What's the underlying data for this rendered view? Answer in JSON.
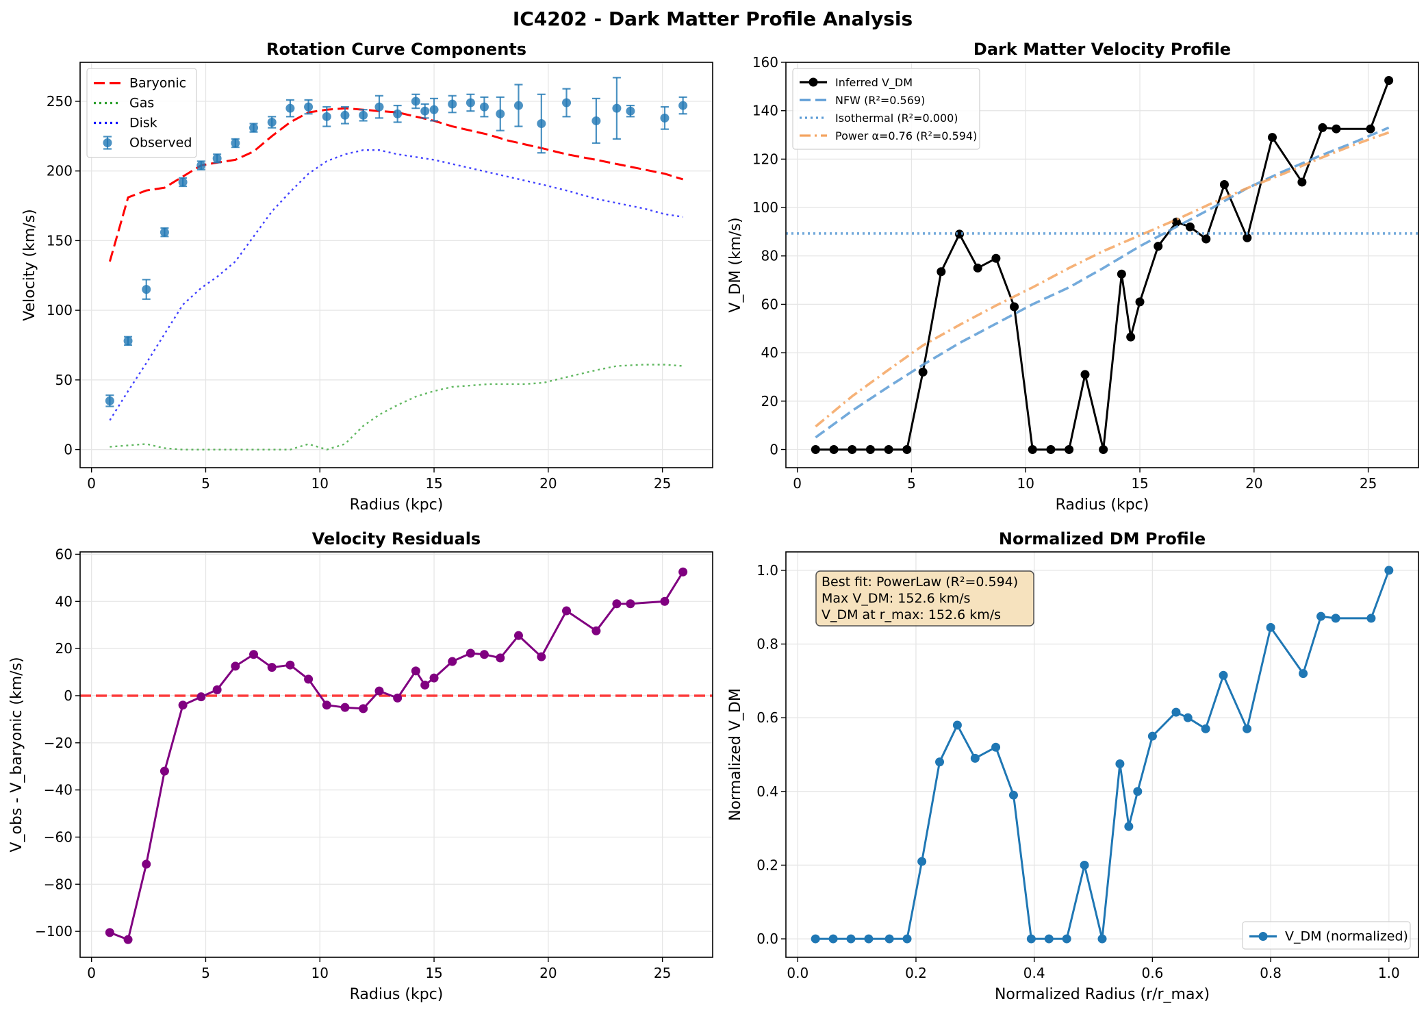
{
  "suptitle": "IC4202 - Dark Matter Profile Analysis",
  "chart_data": [
    {
      "type": "line",
      "title": "Rotation Curve Components",
      "xlabel": "Radius (kpc)",
      "ylabel": "Velocity (km/s)",
      "xlim": [
        -0.5,
        27.2
      ],
      "ylim": [
        -13,
        278
      ],
      "xticks": [
        0,
        5,
        10,
        15,
        20,
        25
      ],
      "yticks": [
        0,
        50,
        100,
        150,
        200,
        250
      ],
      "grid": true,
      "legend_position": "upper-left",
      "series": [
        {
          "name": "Baryonic",
          "style": "dashed",
          "color": "#ff0000",
          "x": [
            0.8,
            1.6,
            2.4,
            3.2,
            4.0,
            4.8,
            5.5,
            6.3,
            7.1,
            7.9,
            8.7,
            9.5,
            10.3,
            11.1,
            11.9,
            12.6,
            13.4,
            14.2,
            15.0,
            15.8,
            16.6,
            17.4,
            18.2,
            19.0,
            19.8,
            20.8,
            22.1,
            23.0,
            24.2,
            25.1,
            25.9
          ],
          "y": [
            135,
            181,
            186,
            188,
            196,
            204,
            206,
            208,
            214,
            225,
            235,
            242,
            244,
            245,
            244,
            243,
            242,
            239,
            236,
            232,
            229,
            226,
            222,
            219,
            216,
            212,
            208,
            205,
            201,
            198,
            194
          ]
        },
        {
          "name": "Gas",
          "style": "dotted",
          "color": "#2ca02c",
          "x": [
            0.8,
            1.6,
            2.4,
            3.2,
            4.0,
            4.8,
            5.5,
            6.3,
            7.1,
            7.9,
            8.7,
            9.5,
            10.3,
            11.1,
            11.9,
            12.6,
            13.4,
            14.2,
            15.0,
            15.8,
            16.6,
            17.4,
            18.2,
            19.0,
            19.8,
            20.8,
            22.1,
            23.0,
            24.2,
            25.1,
            25.9
          ],
          "y": [
            2,
            3,
            4,
            1,
            0,
            0,
            0,
            0,
            0,
            0,
            0,
            4,
            0,
            4,
            17,
            25,
            32,
            38,
            42,
            45,
            46,
            47,
            47,
            47,
            48,
            52,
            57,
            60,
            61,
            61,
            60
          ]
        },
        {
          "name": "Disk",
          "style": "dotted",
          "color": "#0000ff",
          "x": [
            0.8,
            1.6,
            2.4,
            3.2,
            4.0,
            4.8,
            5.5,
            6.3,
            7.1,
            7.9,
            8.7,
            9.5,
            10.3,
            11.1,
            11.9,
            12.6,
            13.4,
            14.2,
            15.0,
            15.8,
            16.6,
            17.4,
            18.2,
            19.0,
            19.8,
            20.8,
            22.1,
            23.0,
            24.2,
            25.1,
            25.9
          ],
          "y": [
            21,
            42,
            62,
            83,
            104,
            116,
            124,
            135,
            153,
            171,
            185,
            198,
            207,
            212,
            215,
            215,
            212,
            210,
            208,
            205,
            202,
            199,
            196,
            193,
            190,
            186,
            180,
            177,
            173,
            169,
            167
          ]
        },
        {
          "name": "Observed",
          "style": "errorbar",
          "color": "#1f77b4",
          "x": [
            0.8,
            1.6,
            2.4,
            3.2,
            4.0,
            4.8,
            5.5,
            6.3,
            7.1,
            7.9,
            8.7,
            9.5,
            10.3,
            11.1,
            11.9,
            12.6,
            13.4,
            14.2,
            14.6,
            15.0,
            15.8,
            16.6,
            17.2,
            17.9,
            18.7,
            19.7,
            20.8,
            22.1,
            23.0,
            23.6,
            25.1,
            25.9
          ],
          "y": [
            35,
            78,
            115,
            156,
            192,
            204,
            209,
            220,
            231,
            235,
            245,
            246,
            239,
            240,
            240,
            246,
            241,
            250,
            243,
            244,
            248,
            249,
            246,
            241,
            247,
            234,
            249,
            236,
            245,
            243,
            238,
            247
          ],
          "err": [
            4,
            3,
            7,
            3,
            3,
            3,
            3,
            3,
            3,
            4,
            6,
            5,
            7,
            6,
            4,
            8,
            6,
            5,
            5,
            8,
            6,
            6,
            7,
            12,
            15,
            21,
            10,
            16,
            22,
            4,
            8,
            6
          ]
        }
      ]
    },
    {
      "type": "line",
      "title": "Dark Matter Velocity Profile",
      "xlabel": "Radius (kpc)",
      "ylabel": "V_DM (km/s)",
      "xlim": [
        -0.5,
        27.2
      ],
      "ylim": [
        -7.5,
        160
      ],
      "xticks": [
        0,
        5,
        10,
        15,
        20,
        25
      ],
      "yticks": [
        0,
        20,
        40,
        60,
        80,
        100,
        120,
        140,
        160
      ],
      "grid": true,
      "legend_position": "upper-left",
      "series": [
        {
          "name": "Inferred V_DM",
          "style": "solid-markers",
          "color": "#000000",
          "x": [
            0.8,
            1.6,
            2.4,
            3.2,
            4.0,
            4.8,
            5.5,
            6.3,
            7.1,
            7.9,
            8.7,
            9.5,
            10.3,
            11.1,
            11.9,
            12.6,
            13.4,
            14.2,
            14.6,
            15.0,
            15.8,
            16.6,
            17.2,
            17.9,
            18.7,
            19.7,
            20.8,
            22.1,
            23.0,
            23.6,
            25.1,
            25.9
          ],
          "y": [
            0,
            0,
            0,
            0,
            0,
            0,
            32,
            73.5,
            89,
            75,
            79,
            59,
            0,
            0,
            0,
            31,
            0,
            72.5,
            46.5,
            61,
            84,
            94,
            92,
            87,
            109.5,
            87.5,
            129,
            110.5,
            133,
            132.5,
            132.5,
            152.5
          ]
        },
        {
          "name": "NFW (R²=0.569)",
          "style": "dashed",
          "color": "#5b9bd5",
          "x": [
            0.8,
            2.4,
            4.0,
            5.5,
            7.1,
            8.7,
            10.3,
            11.9,
            13.4,
            15.0,
            16.6,
            18.2,
            19.7,
            21.3,
            22.8,
            24.4,
            25.9
          ],
          "y": [
            5,
            16,
            26,
            35,
            44,
            52,
            60,
            67,
            75,
            84,
            92,
            100,
            108,
            115,
            121,
            127,
            133
          ]
        },
        {
          "name": "Isothermal (R²=0.000)",
          "style": "dotted",
          "color": "#5b9bd5",
          "x": [
            -0.5,
            27.2
          ],
          "y": [
            89.3,
            89.3
          ]
        },
        {
          "name": "Power α=0.76 (R²=0.594)",
          "style": "dashdot",
          "color": "#f4a460",
          "x": [
            0.8,
            2.4,
            4.0,
            5.5,
            7.1,
            8.7,
            10.3,
            11.9,
            13.4,
            15.0,
            16.6,
            18.2,
            19.7,
            21.3,
            22.8,
            24.4,
            25.9
          ],
          "y": [
            9.5,
            22,
            33,
            43,
            51.5,
            59.5,
            67,
            75,
            82,
            88.5,
            95,
            102,
            108,
            114,
            120,
            126,
            131
          ]
        }
      ]
    },
    {
      "type": "line",
      "title": "Velocity Residuals",
      "xlabel": "Radius (kpc)",
      "ylabel": "V_obs - V_baryonic (km/s)",
      "xlim": [
        -0.5,
        27.2
      ],
      "ylim": [
        -111,
        61
      ],
      "xticks": [
        0,
        5,
        10,
        15,
        20,
        25
      ],
      "yticks": [
        -100,
        -80,
        -60,
        -40,
        -20,
        0,
        20,
        40,
        60
      ],
      "grid": true,
      "reference_line": {
        "y": 0,
        "style": "dashed",
        "color": "#ff0000"
      },
      "series": [
        {
          "name": "",
          "style": "solid-markers",
          "color": "#800080",
          "x": [
            0.8,
            1.6,
            2.4,
            3.2,
            4.0,
            4.8,
            5.5,
            6.3,
            7.1,
            7.9,
            8.7,
            9.5,
            10.3,
            11.1,
            11.9,
            12.6,
            13.4,
            14.2,
            14.6,
            15.0,
            15.8,
            16.6,
            17.2,
            17.9,
            18.7,
            19.7,
            20.8,
            22.1,
            23.0,
            23.6,
            25.1,
            25.9
          ],
          "y": [
            -100.5,
            -103.5,
            -71.5,
            -32,
            -4,
            -0.5,
            2.5,
            12.5,
            17.5,
            12,
            13,
            7,
            -4,
            -5,
            -5.5,
            2,
            -1,
            10.5,
            4.5,
            7.5,
            14.5,
            18,
            17.5,
            16,
            25.5,
            16.5,
            36,
            27.5,
            39,
            39,
            40,
            52.5
          ]
        }
      ]
    },
    {
      "type": "line",
      "title": "Normalized DM Profile",
      "xlabel": "Normalized Radius (r/r_max)",
      "ylabel": "Normalized V_DM",
      "xlim": [
        -0.02,
        1.05
      ],
      "ylim": [
        -0.05,
        1.05
      ],
      "xticks": [
        0.0,
        0.2,
        0.4,
        0.6,
        0.8,
        1.0
      ],
      "yticks": [
        0.0,
        0.2,
        0.4,
        0.6,
        0.8,
        1.0
      ],
      "grid": true,
      "legend_position": "lower-right",
      "annotation": [
        "Best fit: PowerLaw (R²=0.594)",
        "Max V_DM: 152.6 km/s",
        "V_DM at r_max: 152.6 km/s"
      ],
      "series": [
        {
          "name": "V_DM (normalized)",
          "style": "solid-markers",
          "color": "#1f77b4",
          "x": [
            0.03,
            0.06,
            0.09,
            0.12,
            0.155,
            0.185,
            0.21,
            0.24,
            0.27,
            0.3,
            0.335,
            0.365,
            0.395,
            0.425,
            0.455,
            0.485,
            0.515,
            0.545,
            0.56,
            0.575,
            0.6,
            0.64,
            0.66,
            0.69,
            0.72,
            0.76,
            0.8,
            0.855,
            0.885,
            0.91,
            0.97,
            1.0
          ],
          "y": [
            0,
            0,
            0,
            0,
            0,
            0,
            0.21,
            0.48,
            0.58,
            0.49,
            0.52,
            0.39,
            0,
            0,
            0,
            0.2,
            0,
            0.475,
            0.305,
            0.4,
            0.55,
            0.615,
            0.6,
            0.57,
            0.715,
            0.57,
            0.845,
            0.72,
            0.875,
            0.87,
            0.87,
            1.0
          ]
        }
      ]
    }
  ]
}
